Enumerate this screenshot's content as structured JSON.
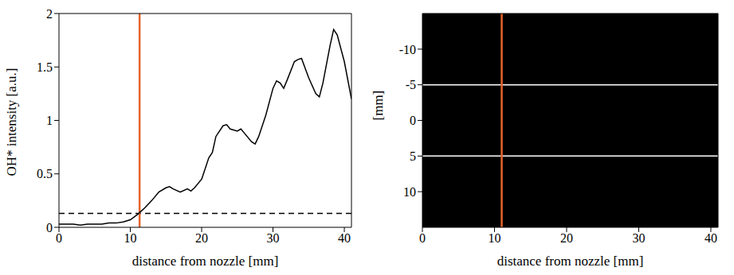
{
  "chart_data": [
    {
      "type": "line",
      "xlabel": "distance from nozzle [mm]",
      "ylabel": "OH* intensity [a.u.]",
      "x": [
        0,
        1,
        2,
        3,
        4,
        5,
        6,
        7,
        8,
        9,
        10,
        11,
        11.5,
        12,
        13,
        14,
        15,
        15.5,
        16,
        17,
        18,
        18.5,
        19,
        20,
        21,
        21.5,
        22,
        23,
        23.5,
        24,
        25,
        25.5,
        26,
        27,
        27.5,
        28,
        29,
        30,
        30.5,
        31,
        31.5,
        32,
        33,
        33.5,
        34,
        35,
        36,
        36.5,
        37,
        38,
        38.5,
        39,
        40,
        41
      ],
      "values": [
        0.03,
        0.03,
        0.03,
        0.02,
        0.03,
        0.03,
        0.03,
        0.04,
        0.04,
        0.05,
        0.07,
        0.12,
        0.15,
        0.18,
        0.25,
        0.33,
        0.37,
        0.38,
        0.36,
        0.33,
        0.36,
        0.34,
        0.37,
        0.45,
        0.65,
        0.7,
        0.85,
        0.95,
        0.96,
        0.92,
        0.9,
        0.92,
        0.88,
        0.8,
        0.78,
        0.85,
        1.05,
        1.3,
        1.37,
        1.35,
        1.3,
        1.38,
        1.55,
        1.57,
        1.58,
        1.4,
        1.25,
        1.22,
        1.35,
        1.7,
        1.85,
        1.8,
        1.55,
        1.2
      ],
      "color": "#000000",
      "threshold": 0.13,
      "onset": 11.3,
      "xlim": [
        0,
        41
      ],
      "xticks": [
        0,
        10,
        20,
        30,
        40
      ],
      "ylim": [
        0,
        2
      ],
      "yticks": [
        0,
        0.5,
        1,
        1.5,
        2
      ]
    },
    {
      "type": "image",
      "xlabel": "distance from nozzle [mm]",
      "ylabel": "[mm]",
      "background": "#000000",
      "hlines": [
        -5,
        5
      ],
      "onset": 11,
      "xlim": [
        0,
        41
      ],
      "xticks": [
        0,
        10,
        20,
        30,
        40
      ],
      "ylim": [
        -15,
        15
      ],
      "yticks": [
        -10,
        -5,
        0,
        5,
        10
      ]
    }
  ]
}
